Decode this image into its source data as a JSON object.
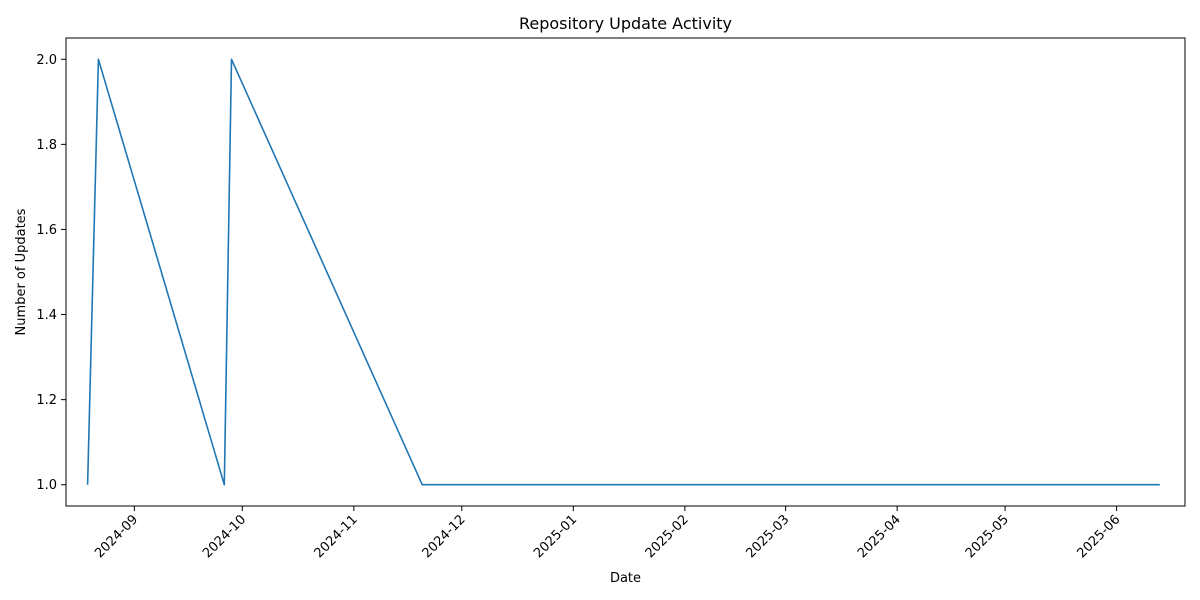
{
  "chart_data": {
    "type": "line",
    "title": "Repository Update Activity",
    "xlabel": "Date",
    "ylabel": "Number of Updates",
    "x_ticks": [
      "2024-09",
      "2024-10",
      "2024-11",
      "2024-12",
      "2025-01",
      "2025-02",
      "2025-03",
      "2025-04",
      "2025-05",
      "2025-06"
    ],
    "y_ticks": [
      "1.0",
      "1.2",
      "1.4",
      "1.6",
      "1.8",
      "2.0"
    ],
    "xlim": [
      "2024-08-13",
      "2025-06-20"
    ],
    "ylim": [
      0.95,
      2.05
    ],
    "grid": false,
    "color": "#1f77b4",
    "series": [
      {
        "x": [
          "2024-08-19",
          "2024-08-22",
          "2024-09-26",
          "2024-09-28",
          "2024-11-20",
          "2025-06-13"
        ],
        "values": [
          1,
          2,
          1,
          2,
          1,
          1
        ]
      }
    ]
  }
}
